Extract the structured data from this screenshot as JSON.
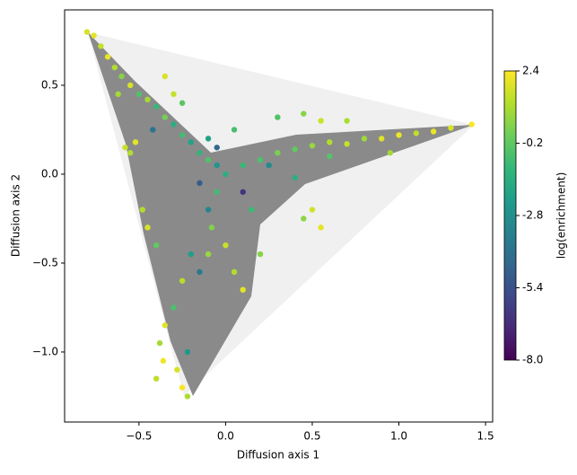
{
  "chart_data": {
    "type": "scatter",
    "xlabel": "Diffusion axis 1",
    "ylabel": "Diffusion axis 2",
    "colorbar_label": "log(enrichment)",
    "colormap": "viridis",
    "xlim": [
      -0.929,
      1.541
    ],
    "ylim": [
      -1.394,
      0.924
    ],
    "xticks": [
      {
        "value": -0.5,
        "label": "−0.5"
      },
      {
        "value": 0,
        "label": "0.0"
      },
      0.5,
      {
        "value": 1,
        "label": "1.0"
      },
      1.5
    ],
    "yticks": [
      {
        "value": -1,
        "label": "−1.0"
      },
      {
        "value": -0.5,
        "label": "−0.5"
      },
      {
        "value": 0,
        "label": "0.0"
      },
      0.5
    ],
    "clim": [
      -8,
      2.4
    ],
    "cticks": [
      {
        "value": -8,
        "label": "-8.0"
      },
      -5.4,
      -2.8,
      -0.2,
      2.4
    ],
    "x": [
      -0.8,
      -0.76,
      -0.72,
      -0.68,
      -0.64,
      -0.6,
      -0.55,
      -0.5,
      -0.45,
      -0.4,
      -0.35,
      -0.3,
      -0.25,
      -0.2,
      -0.15,
      -0.1,
      -0.05,
      -0.58,
      -0.55,
      -0.52,
      -0.42,
      -0.3,
      -0.25,
      -0.35,
      -0.62,
      0.1,
      0.2,
      0.3,
      0.4,
      0.5,
      0.6,
      0.7,
      0.8,
      0.9,
      1.0,
      1.1,
      1.2,
      1.3,
      1.42,
      0.3,
      0.45,
      0.55,
      0.7,
      0.25,
      0.4,
      0.6,
      0.95,
      0.5,
      0.55,
      0.45,
      0.0,
      -0.05,
      -0.1,
      -0.08,
      0.0,
      0.05,
      0.1,
      -0.2,
      -0.25,
      -0.3,
      -0.35,
      -0.38,
      -0.36,
      -0.4,
      -0.28,
      -0.25,
      -0.22,
      -0.22,
      -0.15,
      -0.1,
      -0.45,
      -0.48,
      -0.4,
      0.15,
      0.2,
      -0.1,
      0.05,
      -0.15,
      0.1,
      -0.05
    ],
    "y": [
      0.8,
      0.78,
      0.72,
      0.66,
      0.6,
      0.55,
      0.5,
      0.45,
      0.42,
      0.38,
      0.32,
      0.28,
      0.22,
      0.18,
      0.12,
      0.08,
      0.05,
      0.15,
      0.12,
      0.18,
      0.25,
      0.45,
      0.4,
      0.55,
      0.45,
      0.05,
      0.08,
      0.12,
      0.14,
      0.16,
      0.18,
      0.17,
      0.2,
      0.2,
      0.22,
      0.23,
      0.24,
      0.26,
      0.28,
      0.32,
      0.34,
      0.3,
      0.3,
      0.05,
      -0.02,
      0.1,
      0.12,
      -0.2,
      -0.3,
      -0.25,
      0.0,
      -0.1,
      -0.2,
      -0.3,
      -0.4,
      -0.55,
      -0.65,
      -0.45,
      -0.6,
      -0.75,
      -0.85,
      -0.95,
      -1.05,
      -1.15,
      -1.1,
      -1.2,
      -1.25,
      -1.0,
      -0.55,
      -0.45,
      -0.3,
      -0.2,
      -0.4,
      -0.2,
      -0.45,
      0.2,
      0.25,
      -0.05,
      -0.1,
      0.15
    ],
    "c": [
      1.8,
      2.0,
      1.5,
      2.1,
      1.2,
      0.5,
      1.8,
      -0.5,
      1.0,
      -1.0,
      0.2,
      -1.5,
      -0.8,
      -2.0,
      -1.2,
      -0.5,
      -2.5,
      1.6,
      1.2,
      2.0,
      -4.0,
      1.5,
      -0.3,
      1.8,
      1.0,
      -1.0,
      -0.6,
      0.3,
      -0.2,
      0.8,
      1.2,
      1.5,
      0.9,
      1.9,
      2.2,
      1.4,
      2.1,
      1.8,
      2.3,
      -0.5,
      0.5,
      1.6,
      1.1,
      -3.0,
      -1.5,
      -0.4,
      1.0,
      1.7,
      2.0,
      0.6,
      -1.5,
      -0.8,
      -3.2,
      0.4,
      1.6,
      1.2,
      2.0,
      -2.2,
      1.3,
      -0.6,
      1.9,
      1.0,
      2.2,
      1.4,
      1.8,
      2.3,
      1.1,
      -2.5,
      -3.8,
      0.8,
      1.8,
      1.2,
      -0.2,
      -0.9,
      0.5,
      -2.0,
      -0.7,
      -5.0,
      -6.5,
      -4.5
    ]
  }
}
